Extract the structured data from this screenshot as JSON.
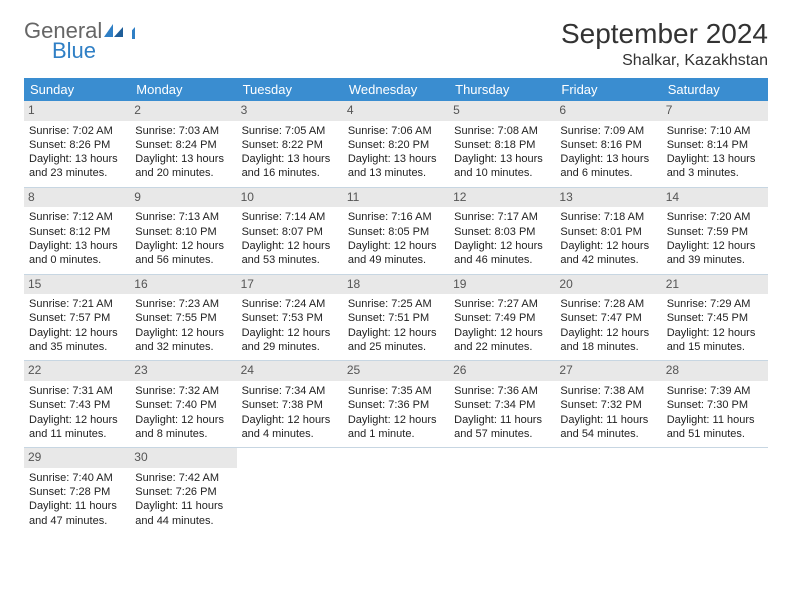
{
  "logo": {
    "text1": "General",
    "text2": "Blue",
    "icon_fill": "#2f7fc5"
  },
  "title": "September 2024",
  "location": "Shalkar, Kazakhstan",
  "header_bg": "#3a8dd0",
  "daynum_bg": "#e8e8e8",
  "row_border": "#c7d6e2",
  "day_headers": [
    "Sunday",
    "Monday",
    "Tuesday",
    "Wednesday",
    "Thursday",
    "Friday",
    "Saturday"
  ],
  "weeks": [
    [
      {
        "n": "1",
        "sr": "Sunrise: 7:02 AM",
        "ss": "Sunset: 8:26 PM",
        "d1": "Daylight: 13 hours",
        "d2": "and 23 minutes."
      },
      {
        "n": "2",
        "sr": "Sunrise: 7:03 AM",
        "ss": "Sunset: 8:24 PM",
        "d1": "Daylight: 13 hours",
        "d2": "and 20 minutes."
      },
      {
        "n": "3",
        "sr": "Sunrise: 7:05 AM",
        "ss": "Sunset: 8:22 PM",
        "d1": "Daylight: 13 hours",
        "d2": "and 16 minutes."
      },
      {
        "n": "4",
        "sr": "Sunrise: 7:06 AM",
        "ss": "Sunset: 8:20 PM",
        "d1": "Daylight: 13 hours",
        "d2": "and 13 minutes."
      },
      {
        "n": "5",
        "sr": "Sunrise: 7:08 AM",
        "ss": "Sunset: 8:18 PM",
        "d1": "Daylight: 13 hours",
        "d2": "and 10 minutes."
      },
      {
        "n": "6",
        "sr": "Sunrise: 7:09 AM",
        "ss": "Sunset: 8:16 PM",
        "d1": "Daylight: 13 hours",
        "d2": "and 6 minutes."
      },
      {
        "n": "7",
        "sr": "Sunrise: 7:10 AM",
        "ss": "Sunset: 8:14 PM",
        "d1": "Daylight: 13 hours",
        "d2": "and 3 minutes."
      }
    ],
    [
      {
        "n": "8",
        "sr": "Sunrise: 7:12 AM",
        "ss": "Sunset: 8:12 PM",
        "d1": "Daylight: 13 hours",
        "d2": "and 0 minutes."
      },
      {
        "n": "9",
        "sr": "Sunrise: 7:13 AM",
        "ss": "Sunset: 8:10 PM",
        "d1": "Daylight: 12 hours",
        "d2": "and 56 minutes."
      },
      {
        "n": "10",
        "sr": "Sunrise: 7:14 AM",
        "ss": "Sunset: 8:07 PM",
        "d1": "Daylight: 12 hours",
        "d2": "and 53 minutes."
      },
      {
        "n": "11",
        "sr": "Sunrise: 7:16 AM",
        "ss": "Sunset: 8:05 PM",
        "d1": "Daylight: 12 hours",
        "d2": "and 49 minutes."
      },
      {
        "n": "12",
        "sr": "Sunrise: 7:17 AM",
        "ss": "Sunset: 8:03 PM",
        "d1": "Daylight: 12 hours",
        "d2": "and 46 minutes."
      },
      {
        "n": "13",
        "sr": "Sunrise: 7:18 AM",
        "ss": "Sunset: 8:01 PM",
        "d1": "Daylight: 12 hours",
        "d2": "and 42 minutes."
      },
      {
        "n": "14",
        "sr": "Sunrise: 7:20 AM",
        "ss": "Sunset: 7:59 PM",
        "d1": "Daylight: 12 hours",
        "d2": "and 39 minutes."
      }
    ],
    [
      {
        "n": "15",
        "sr": "Sunrise: 7:21 AM",
        "ss": "Sunset: 7:57 PM",
        "d1": "Daylight: 12 hours",
        "d2": "and 35 minutes."
      },
      {
        "n": "16",
        "sr": "Sunrise: 7:23 AM",
        "ss": "Sunset: 7:55 PM",
        "d1": "Daylight: 12 hours",
        "d2": "and 32 minutes."
      },
      {
        "n": "17",
        "sr": "Sunrise: 7:24 AM",
        "ss": "Sunset: 7:53 PM",
        "d1": "Daylight: 12 hours",
        "d2": "and 29 minutes."
      },
      {
        "n": "18",
        "sr": "Sunrise: 7:25 AM",
        "ss": "Sunset: 7:51 PM",
        "d1": "Daylight: 12 hours",
        "d2": "and 25 minutes."
      },
      {
        "n": "19",
        "sr": "Sunrise: 7:27 AM",
        "ss": "Sunset: 7:49 PM",
        "d1": "Daylight: 12 hours",
        "d2": "and 22 minutes."
      },
      {
        "n": "20",
        "sr": "Sunrise: 7:28 AM",
        "ss": "Sunset: 7:47 PM",
        "d1": "Daylight: 12 hours",
        "d2": "and 18 minutes."
      },
      {
        "n": "21",
        "sr": "Sunrise: 7:29 AM",
        "ss": "Sunset: 7:45 PM",
        "d1": "Daylight: 12 hours",
        "d2": "and 15 minutes."
      }
    ],
    [
      {
        "n": "22",
        "sr": "Sunrise: 7:31 AM",
        "ss": "Sunset: 7:43 PM",
        "d1": "Daylight: 12 hours",
        "d2": "and 11 minutes."
      },
      {
        "n": "23",
        "sr": "Sunrise: 7:32 AM",
        "ss": "Sunset: 7:40 PM",
        "d1": "Daylight: 12 hours",
        "d2": "and 8 minutes."
      },
      {
        "n": "24",
        "sr": "Sunrise: 7:34 AM",
        "ss": "Sunset: 7:38 PM",
        "d1": "Daylight: 12 hours",
        "d2": "and 4 minutes."
      },
      {
        "n": "25",
        "sr": "Sunrise: 7:35 AM",
        "ss": "Sunset: 7:36 PM",
        "d1": "Daylight: 12 hours",
        "d2": "and 1 minute."
      },
      {
        "n": "26",
        "sr": "Sunrise: 7:36 AM",
        "ss": "Sunset: 7:34 PM",
        "d1": "Daylight: 11 hours",
        "d2": "and 57 minutes."
      },
      {
        "n": "27",
        "sr": "Sunrise: 7:38 AM",
        "ss": "Sunset: 7:32 PM",
        "d1": "Daylight: 11 hours",
        "d2": "and 54 minutes."
      },
      {
        "n": "28",
        "sr": "Sunrise: 7:39 AM",
        "ss": "Sunset: 7:30 PM",
        "d1": "Daylight: 11 hours",
        "d2": "and 51 minutes."
      }
    ],
    [
      {
        "n": "29",
        "sr": "Sunrise: 7:40 AM",
        "ss": "Sunset: 7:28 PM",
        "d1": "Daylight: 11 hours",
        "d2": "and 47 minutes."
      },
      {
        "n": "30",
        "sr": "Sunrise: 7:42 AM",
        "ss": "Sunset: 7:26 PM",
        "d1": "Daylight: 11 hours",
        "d2": "and 44 minutes."
      },
      {
        "empty": true
      },
      {
        "empty": true
      },
      {
        "empty": true
      },
      {
        "empty": true
      },
      {
        "empty": true
      }
    ]
  ]
}
